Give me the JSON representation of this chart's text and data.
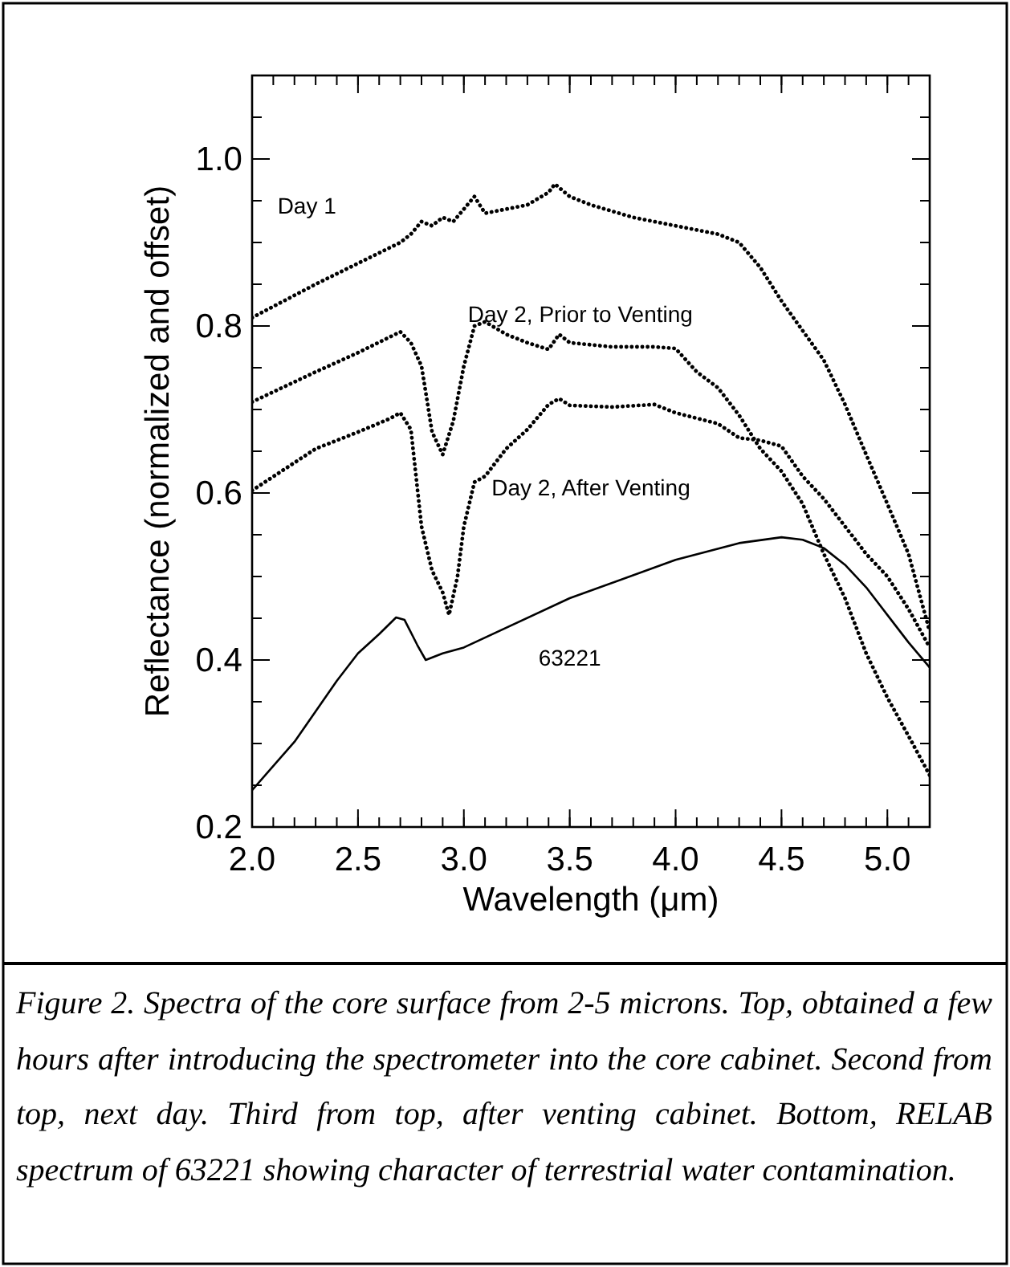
{
  "chart_data": {
    "type": "line",
    "xlabel": "Wavelength (μm)",
    "ylabel": "Reflectance (normalized and offset)",
    "xlim": [
      2.0,
      5.2
    ],
    "ylim": [
      0.2,
      1.1
    ],
    "xticks": [
      {
        "value": 2,
        "label": "2.0"
      },
      2.5,
      {
        "value": 3,
        "label": "3.0"
      },
      3.5,
      {
        "value": 4,
        "label": "4.0"
      },
      4.5,
      {
        "value": 5,
        "label": "5.0"
      }
    ],
    "yticks": [
      0.2,
      0.4,
      0.6,
      0.8,
      {
        "value": 1,
        "label": "1.0"
      }
    ],
    "grid": false,
    "series": [
      {
        "name": "Day 1",
        "color": "#000000",
        "line_style": "dotted",
        "x": [
          2.0,
          2.3,
          2.5,
          2.7,
          2.75,
          2.8,
          2.85,
          2.9,
          2.95,
          3.0,
          3.05,
          3.1,
          3.2,
          3.3,
          3.4,
          3.43,
          3.5,
          3.6,
          3.8,
          4.0,
          4.2,
          4.3,
          4.4,
          4.5,
          4.57,
          4.7,
          4.8,
          4.9,
          5.0,
          5.1,
          5.2
        ],
        "values": [
          0.81,
          0.85,
          0.875,
          0.9,
          0.91,
          0.925,
          0.92,
          0.93,
          0.925,
          0.94,
          0.955,
          0.935,
          0.94,
          0.945,
          0.96,
          0.97,
          0.955,
          0.945,
          0.93,
          0.92,
          0.91,
          0.9,
          0.87,
          0.83,
          0.805,
          0.759,
          0.706,
          0.646,
          0.587,
          0.527,
          0.434
        ]
      },
      {
        "name": "Day 2, Prior to Venting",
        "color": "#000000",
        "line_style": "dotted",
        "x": [
          2.0,
          2.3,
          2.5,
          2.7,
          2.75,
          2.8,
          2.85,
          2.9,
          2.95,
          3.0,
          3.05,
          3.1,
          3.2,
          3.3,
          3.4,
          3.45,
          3.5,
          3.7,
          3.9,
          4.0,
          4.1,
          4.2,
          4.3,
          4.4,
          4.5,
          4.6,
          4.7,
          4.8,
          4.9,
          5.0,
          5.1,
          5.2
        ],
        "values": [
          0.709,
          0.745,
          0.768,
          0.793,
          0.78,
          0.752,
          0.673,
          0.646,
          0.686,
          0.752,
          0.8,
          0.805,
          0.79,
          0.78,
          0.772,
          0.79,
          0.78,
          0.775,
          0.775,
          0.773,
          0.745,
          0.726,
          0.693,
          0.653,
          0.626,
          0.587,
          0.527,
          0.474,
          0.408,
          0.355,
          0.309,
          0.262
        ]
      },
      {
        "name": "Day 2, After Venting",
        "color": "#000000",
        "line_style": "dotted",
        "x": [
          2.0,
          2.3,
          2.5,
          2.65,
          2.7,
          2.75,
          2.8,
          2.85,
          2.9,
          2.93,
          2.97,
          3.0,
          3.05,
          3.1,
          3.2,
          3.3,
          3.4,
          3.45,
          3.5,
          3.7,
          3.9,
          4.0,
          4.2,
          4.3,
          4.4,
          4.5,
          4.6,
          4.7,
          4.8,
          4.9,
          5.0,
          5.1,
          5.2
        ],
        "values": [
          0.603,
          0.653,
          0.673,
          0.689,
          0.696,
          0.676,
          0.56,
          0.507,
          0.481,
          0.454,
          0.5,
          0.56,
          0.613,
          0.62,
          0.653,
          0.676,
          0.706,
          0.713,
          0.705,
          0.703,
          0.706,
          0.696,
          0.683,
          0.666,
          0.663,
          0.656,
          0.62,
          0.593,
          0.56,
          0.527,
          0.5,
          0.461,
          0.415
        ]
      },
      {
        "name": "63221",
        "color": "#000000",
        "line_style": "solid",
        "x": [
          2.0,
          2.2,
          2.4,
          2.5,
          2.6,
          2.68,
          2.72,
          2.78,
          2.82,
          2.9,
          3.0,
          3.5,
          4.0,
          4.3,
          4.5,
          4.6,
          4.7,
          4.8,
          4.9,
          5.0,
          5.1,
          5.2
        ],
        "values": [
          0.244,
          0.302,
          0.375,
          0.408,
          0.431,
          0.451,
          0.448,
          0.418,
          0.4,
          0.408,
          0.415,
          0.474,
          0.52,
          0.54,
          0.547,
          0.544,
          0.534,
          0.514,
          0.487,
          0.454,
          0.421,
          0.391
        ]
      }
    ],
    "annotations": [
      "Figure 2.  Spectra of the core surface from 2-5 microns.  Top, obtained a few hours after introducing the spectrometer into the core cabinet.  Second from top, next day.  Third from top, after venting cabinet.  Bottom, RELAB spectrum of 63221 showing character of terrestrial water contamination."
    ]
  }
}
